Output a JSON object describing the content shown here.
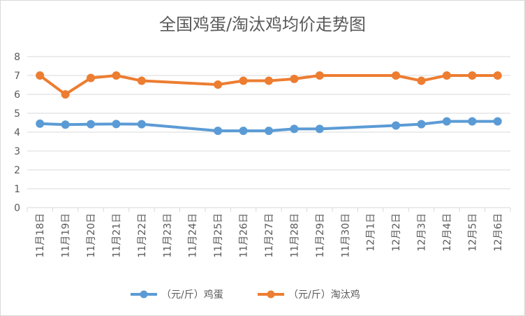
{
  "chart_data": {
    "type": "line",
    "title": "全国鸡蛋/淘汰鸡均价走势图",
    "xlabel": "",
    "ylabel": "",
    "categories": [
      "11月18日",
      "11月19日",
      "11月20日",
      "11月21日",
      "11月22日",
      "11月23日",
      "11月24日",
      "11月25日",
      "11月26日",
      "11月27日",
      "11月28日",
      "11月29日",
      "11月30日",
      "12月1日",
      "12月2日",
      "12月3日",
      "12月4日",
      "12月5日",
      "12月6日"
    ],
    "y_ticks": [
      "0",
      "1",
      "2",
      "3",
      "4",
      "5",
      "6",
      "7",
      "8"
    ],
    "ylim": [
      0,
      8
    ],
    "grid": true,
    "legend_position": "bottom",
    "series": [
      {
        "name": "（元/斤）鸡蛋",
        "color": "#5B9BD5",
        "values": [
          4.45,
          4.4,
          4.42,
          4.43,
          4.42,
          null,
          null,
          4.07,
          4.07,
          4.07,
          4.17,
          4.17,
          null,
          null,
          4.35,
          4.42,
          4.57,
          4.57,
          4.57
        ]
      },
      {
        "name": "（元/斤）淘汰鸡",
        "color": "#ED7D31",
        "values": [
          7.0,
          6.0,
          6.87,
          7.0,
          6.72,
          null,
          null,
          6.52,
          6.72,
          6.72,
          6.82,
          7.0,
          null,
          null,
          7.0,
          6.72,
          7.0,
          7.0,
          7.0
        ]
      }
    ]
  }
}
